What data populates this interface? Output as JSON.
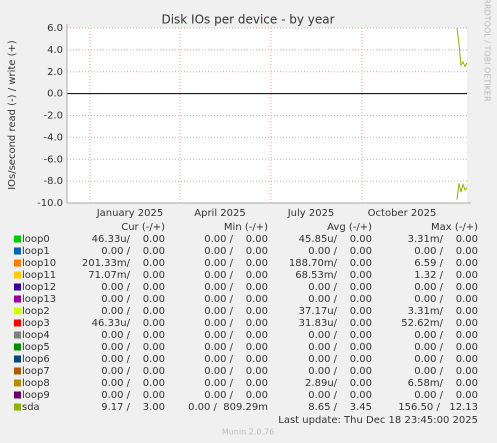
{
  "chart_data": {
    "type": "line",
    "title": "Disk IOs per device - by year",
    "y_label": "IOs/second read (-) / write (+)",
    "side_label": "RRDTOOL / TOBI OETIKER",
    "ylim": [
      -10,
      6
    ],
    "yticks": [
      {
        "value": 6,
        "label": "6.0"
      },
      {
        "value": 4,
        "label": "4.0"
      },
      {
        "value": 2,
        "label": "2.0"
      },
      {
        "value": 0,
        "label": "0.0"
      },
      {
        "value": -2,
        "label": "-2.0"
      },
      {
        "value": -4,
        "label": "-4.0"
      },
      {
        "value": -6,
        "label": "-6.0"
      },
      {
        "value": -8,
        "label": "-8.0"
      },
      {
        "value": -10,
        "label": "-10.0"
      }
    ],
    "xticks": [
      "January 2025",
      "April 2025",
      "July 2025",
      "October 2025"
    ],
    "grid": true,
    "series": [
      {
        "name": "sda",
        "color": "#8fb300",
        "values": [
          6.0,
          4.5,
          2.6,
          2.9,
          2.5,
          2.8
        ]
      },
      {
        "name": "sda",
        "color": "#8fb300",
        "values": [
          -9.7,
          -8.2,
          -9.0,
          -8.3,
          -8.8,
          -8.6
        ]
      }
    ],
    "legend": {
      "headers": [
        "Cur (-/+)",
        "Min (-/+)",
        "Avg (-/+)",
        "Max (-/+)"
      ],
      "rows": [
        {
          "name": "loop0",
          "color": "#00cc00",
          "cells": [
            "46.33u/    0.00",
            "0.00 /    0.00",
            "45.85u/    0.00",
            "3.31m/    0.00"
          ]
        },
        {
          "name": "loop1",
          "color": "#0066b3",
          "cells": [
            "0.00 /    0.00",
            "0.00 /    0.00",
            "0.00 /    0.00",
            "0.00 /    0.00"
          ]
        },
        {
          "name": "loop10",
          "color": "#ff8000",
          "cells": [
            "201.33m/    0.00",
            "0.00 /    0.00",
            "188.70m/    0.00",
            "6.59 /    0.00"
          ]
        },
        {
          "name": "loop11",
          "color": "#ffcc00",
          "cells": [
            "71.07m/    0.00",
            "0.00 /    0.00",
            "68.53m/    0.00",
            "1.32 /    0.00"
          ]
        },
        {
          "name": "loop12",
          "color": "#330099",
          "cells": [
            "0.00 /    0.00",
            "0.00 /    0.00",
            "0.00 /    0.00",
            "0.00 /    0.00"
          ]
        },
        {
          "name": "loop13",
          "color": "#990099",
          "cells": [
            "0.00 /    0.00",
            "0.00 /    0.00",
            "0.00 /    0.00",
            "0.00 /    0.00"
          ]
        },
        {
          "name": "loop2",
          "color": "#ccff00",
          "cells": [
            "0.00 /    0.00",
            "0.00 /    0.00",
            "37.17u/    0.00",
            "3.31m/    0.00"
          ]
        },
        {
          "name": "loop3",
          "color": "#ff0000",
          "cells": [
            "46.33u/    0.00",
            "0.00 /    0.00",
            "31.83u/    0.00",
            "52.62m/    0.00"
          ]
        },
        {
          "name": "loop4",
          "color": "#808080",
          "cells": [
            "0.00 /    0.00",
            "0.00 /    0.00",
            "0.00 /    0.00",
            "0.00 /    0.00"
          ]
        },
        {
          "name": "loop5",
          "color": "#008f00",
          "cells": [
            "0.00 /    0.00",
            "0.00 /    0.00",
            "0.00 /    0.00",
            "0.00 /    0.00"
          ]
        },
        {
          "name": "loop6",
          "color": "#00487d",
          "cells": [
            "0.00 /    0.00",
            "0.00 /    0.00",
            "0.00 /    0.00",
            "0.00 /    0.00"
          ]
        },
        {
          "name": "loop7",
          "color": "#b35a00",
          "cells": [
            "0.00 /    0.00",
            "0.00 /    0.00",
            "0.00 /    0.00",
            "0.00 /    0.00"
          ]
        },
        {
          "name": "loop8",
          "color": "#b38f00",
          "cells": [
            "0.00 /    0.00",
            "0.00 /    0.00",
            "2.89u/    0.00",
            "6.58m/    0.00"
          ]
        },
        {
          "name": "loop9",
          "color": "#6b006b",
          "cells": [
            "0.00 /    0.00",
            "0.00 /    0.00",
            "0.00 /    0.00",
            "0.00 /    0.00"
          ]
        },
        {
          "name": "sda",
          "color": "#8fb300",
          "cells": [
            "9.17 /    3.00",
            "0.00 /  809.29m",
            "8.65 /    3.45",
            "156.50 /   12.13"
          ]
        }
      ]
    },
    "last_update": "Last update: Thu Dec 18 23:45:00 2025",
    "footer": "Munin 2.0.76"
  }
}
